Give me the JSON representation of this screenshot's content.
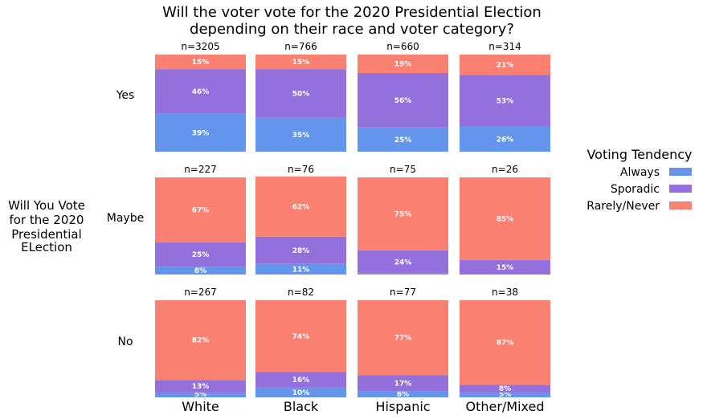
{
  "chart_data": {
    "type": "bar",
    "title_line1": "Will the voter vote for the 2020 Presidential Election",
    "title_line2": "depending on their race and voter category?",
    "row_axis_label": [
      "Will You Vote",
      "for the 2020",
      "Presidential",
      "ELection"
    ],
    "columns": [
      "White",
      "Black",
      "Hispanic",
      "Other/Mixed"
    ],
    "rows": [
      "Yes",
      "Maybe",
      "No"
    ],
    "legend": {
      "title": "Voting Tendency",
      "placement": "right",
      "items": [
        {
          "name": "Always",
          "color": "#6495ED"
        },
        {
          "name": "Sporadic",
          "color": "#9370DB"
        },
        {
          "name": "Rarely/Never",
          "color": "#FA8072"
        }
      ]
    },
    "series_order": [
      "Always",
      "Sporadic",
      "Rarely/Never"
    ],
    "ylim": [
      0,
      100
    ],
    "panels": [
      [
        {
          "n": "n=3205",
          "values": [
            39,
            46,
            15
          ],
          "labels": [
            "39%",
            "46%",
            "15%"
          ]
        },
        {
          "n": "n=766",
          "values": [
            35,
            50,
            15
          ],
          "labels": [
            "35%",
            "50%",
            "15%"
          ]
        },
        {
          "n": "n=660",
          "values": [
            25,
            56,
            19
          ],
          "labels": [
            "25%",
            "56%",
            "19%"
          ]
        },
        {
          "n": "n=314",
          "values": [
            26,
            53,
            21
          ],
          "labels": [
            "26%",
            "53%",
            "21%"
          ]
        }
      ],
      [
        {
          "n": "n=227",
          "values": [
            8,
            25,
            67
          ],
          "labels": [
            "8%",
            "25%",
            "67%"
          ]
        },
        {
          "n": "n=76",
          "values": [
            11,
            28,
            62
          ],
          "labels": [
            "11%",
            "28%",
            "62%"
          ]
        },
        {
          "n": "n=75",
          "values": [
            1,
            24,
            75
          ],
          "labels": [
            "1%",
            "24%",
            "75%"
          ]
        },
        {
          "n": "n=26",
          "values": [
            0,
            15,
            85
          ],
          "labels": [
            "",
            "15%",
            "85%"
          ]
        }
      ],
      [
        {
          "n": "n=267",
          "values": [
            5,
            13,
            82
          ],
          "labels": [
            "5%",
            "13%",
            "82%"
          ]
        },
        {
          "n": "n=82",
          "values": [
            10,
            16,
            74
          ],
          "labels": [
            "10%",
            "16%",
            "74%"
          ]
        },
        {
          "n": "n=77",
          "values": [
            6,
            17,
            77
          ],
          "labels": [
            "6%",
            "17%",
            "77%"
          ]
        },
        {
          "n": "n=38",
          "values": [
            5,
            8,
            87
          ],
          "labels": [
            "5%",
            "8%",
            "87%"
          ]
        }
      ]
    ]
  }
}
